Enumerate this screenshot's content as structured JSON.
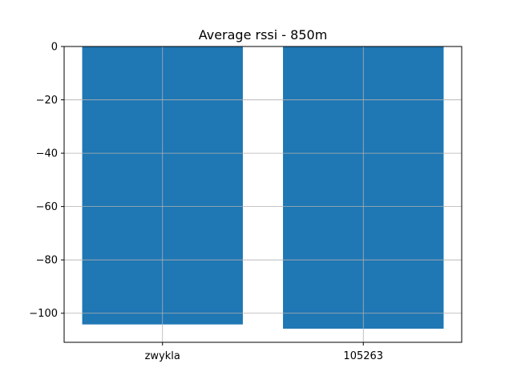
{
  "chart_data": {
    "type": "bar",
    "title": "Average rssi - 850m",
    "xlabel": "",
    "ylabel": "",
    "categories": [
      "zwykla",
      "105263"
    ],
    "values": [
      -104.2,
      -105.8
    ],
    "ylim": [
      -110.9,
      0
    ],
    "yticks": [
      0,
      -20,
      -40,
      -60,
      -80,
      -100
    ],
    "ytick_labels": [
      "0",
      "−20",
      "−40",
      "−60",
      "−80",
      "−100"
    ],
    "grid": true,
    "legend": "none",
    "colors": {
      "bar": "#1f77b4",
      "grid": "#b0b0b0",
      "axis": "#000000",
      "background": "#ffffff"
    }
  }
}
